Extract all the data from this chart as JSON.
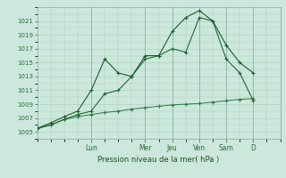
{
  "bg_color": "#cce8dc",
  "grid_color": "#aaccb8",
  "ylim": [
    1004.0,
    1023.0
  ],
  "yticks": [
    1005,
    1007,
    1009,
    1011,
    1013,
    1015,
    1017,
    1019,
    1021
  ],
  "xlabel": "Pression niveau de la mer( hPa )",
  "day_labels": [
    "Lun",
    "Mer",
    "Jeu",
    "Ven",
    "Sam",
    "D"
  ],
  "day_positions": [
    24,
    48,
    60,
    72,
    84,
    96
  ],
  "xlim": [
    0,
    108
  ],
  "series1_x": [
    0,
    6,
    12,
    18,
    24,
    30,
    36,
    42,
    48,
    54,
    60,
    66,
    72,
    78,
    84,
    90,
    96
  ],
  "series1_y": [
    1005.5,
    1006.3,
    1007.2,
    1008.0,
    1011.0,
    1015.5,
    1013.5,
    1013.0,
    1016.0,
    1016.0,
    1019.5,
    1021.5,
    1022.5,
    1021.0,
    1017.5,
    1015.0,
    1013.5
  ],
  "series2_x": [
    0,
    6,
    12,
    18,
    24,
    30,
    36,
    42,
    48,
    54,
    60,
    66,
    72,
    78,
    84,
    90,
    96
  ],
  "series2_y": [
    1005.5,
    1006.0,
    1006.8,
    1007.5,
    1008.0,
    1010.5,
    1011.0,
    1013.0,
    1015.5,
    1016.0,
    1017.0,
    1016.5,
    1021.5,
    1021.0,
    1015.5,
    1013.5,
    1009.5
  ],
  "series3_x": [
    0,
    6,
    12,
    18,
    24,
    30,
    36,
    42,
    48,
    54,
    60,
    66,
    72,
    78,
    84,
    90,
    96
  ],
  "series3_y": [
    1005.5,
    1006.0,
    1006.8,
    1007.2,
    1007.5,
    1007.8,
    1008.0,
    1008.3,
    1008.5,
    1008.7,
    1008.9,
    1009.0,
    1009.1,
    1009.3,
    1009.5,
    1009.7,
    1009.8
  ],
  "line_colors": [
    "#1e5c28",
    "#1e6830",
    "#2a7a40"
  ],
  "marker_color": "#1e5c28"
}
